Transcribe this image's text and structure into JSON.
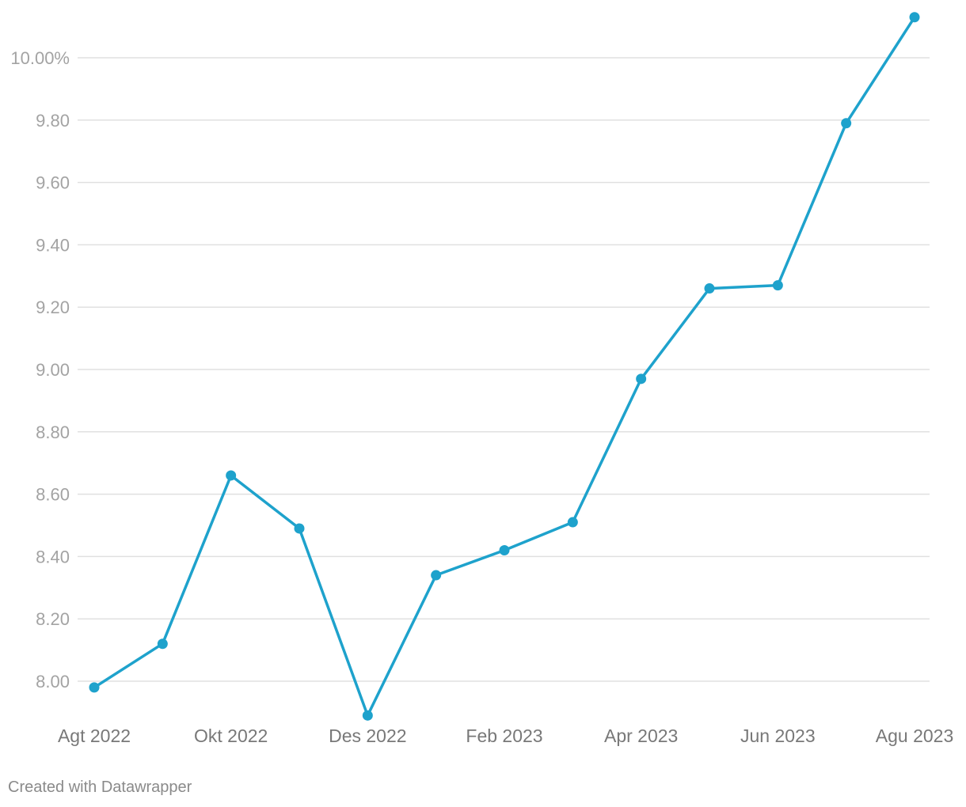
{
  "chart_data": {
    "type": "line",
    "x": [
      "2022-08",
      "2022-09",
      "2022-10",
      "2022-11",
      "2022-12",
      "2023-01",
      "2023-02",
      "2023-03",
      "2023-04",
      "2023-05",
      "2023-06",
      "2023-07",
      "2023-08"
    ],
    "series": [
      {
        "values": [
          7.98,
          8.12,
          8.66,
          8.49,
          7.89,
          8.34,
          8.42,
          8.51,
          8.97,
          9.26,
          9.27,
          9.79,
          10.13
        ]
      }
    ],
    "y_ticks": [
      {
        "value": 8.0,
        "label": "8.00"
      },
      {
        "value": 8.2,
        "label": "8.20"
      },
      {
        "value": 8.4,
        "label": "8.40"
      },
      {
        "value": 8.6,
        "label": "8.60"
      },
      {
        "value": 8.8,
        "label": "8.80"
      },
      {
        "value": 9.0,
        "label": "9.00"
      },
      {
        "value": 9.2,
        "label": "9.20"
      },
      {
        "value": 9.4,
        "label": "9.40"
      },
      {
        "value": 9.6,
        "label": "9.60"
      },
      {
        "value": 9.8,
        "label": "9.80"
      },
      {
        "value": 10.0,
        "label": "10.00%"
      }
    ],
    "x_ticks": [
      {
        "x": "2022-08",
        "label": "Agt 2022"
      },
      {
        "x": "2022-10",
        "label": "Okt 2022"
      },
      {
        "x": "2022-12",
        "label": "Des 2022"
      },
      {
        "x": "2023-02",
        "label": "Feb 2023"
      },
      {
        "x": "2023-04",
        "label": "Apr 2023"
      },
      {
        "x": "2023-06",
        "label": "Jun 2023"
      },
      {
        "x": "2023-08",
        "label": "Agu 2023"
      }
    ],
    "ylim": [
      7.89,
      10.13
    ],
    "grid": true,
    "legend": "none",
    "line_color": "#1ea2cc"
  },
  "credit": "Created with Datawrapper"
}
